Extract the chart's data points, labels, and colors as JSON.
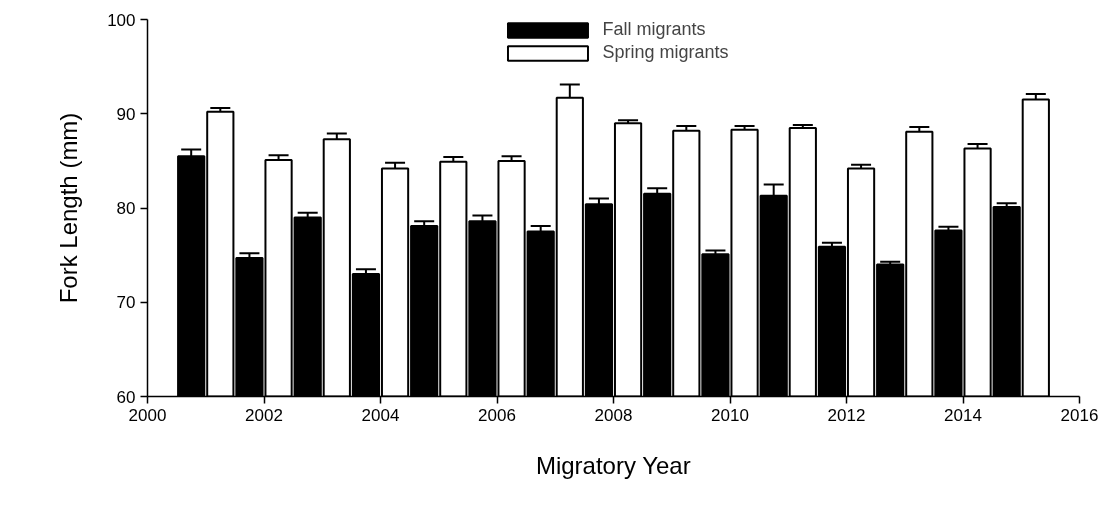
{
  "chart_data": {
    "type": "bar",
    "xlabel": "Migratory Year",
    "ylabel": "Fork Length (mm)",
    "x": [
      2001,
      2002,
      2003,
      2004,
      2005,
      2006,
      2007,
      2008,
      2009,
      2010,
      2011,
      2012,
      2013,
      2014,
      2015
    ],
    "series": [
      {
        "name": "Fall migrants",
        "color": "#000000",
        "values": [
          85.5,
          74.7,
          79.0,
          73.0,
          78.1,
          78.6,
          77.5,
          80.4,
          81.5,
          75.1,
          81.3,
          75.9,
          74.0,
          77.6,
          80.1
        ],
        "errors": [
          0.7,
          0.5,
          0.5,
          0.5,
          0.5,
          0.6,
          0.6,
          0.6,
          0.6,
          0.4,
          1.2,
          0.4,
          0.3,
          0.4,
          0.4
        ]
      },
      {
        "name": "Spring migrants",
        "color": "#ffffff",
        "values": [
          90.2,
          85.1,
          87.3,
          84.2,
          84.9,
          85.0,
          91.7,
          89.0,
          88.2,
          88.3,
          88.5,
          84.2,
          88.1,
          86.3,
          91.5
        ],
        "errors": [
          0.4,
          0.5,
          0.6,
          0.6,
          0.5,
          0.5,
          1.4,
          0.3,
          0.5,
          0.4,
          0.3,
          0.4,
          0.5,
          0.5,
          0.6
        ]
      }
    ],
    "xlim": [
      2000,
      2016
    ],
    "xticks": [
      2000,
      2002,
      2004,
      2006,
      2008,
      2010,
      2012,
      2014,
      2016
    ],
    "ylim": [
      60,
      100
    ],
    "yticks": [
      60,
      70,
      80,
      90,
      100
    ],
    "legend": "top",
    "grid": false
  }
}
